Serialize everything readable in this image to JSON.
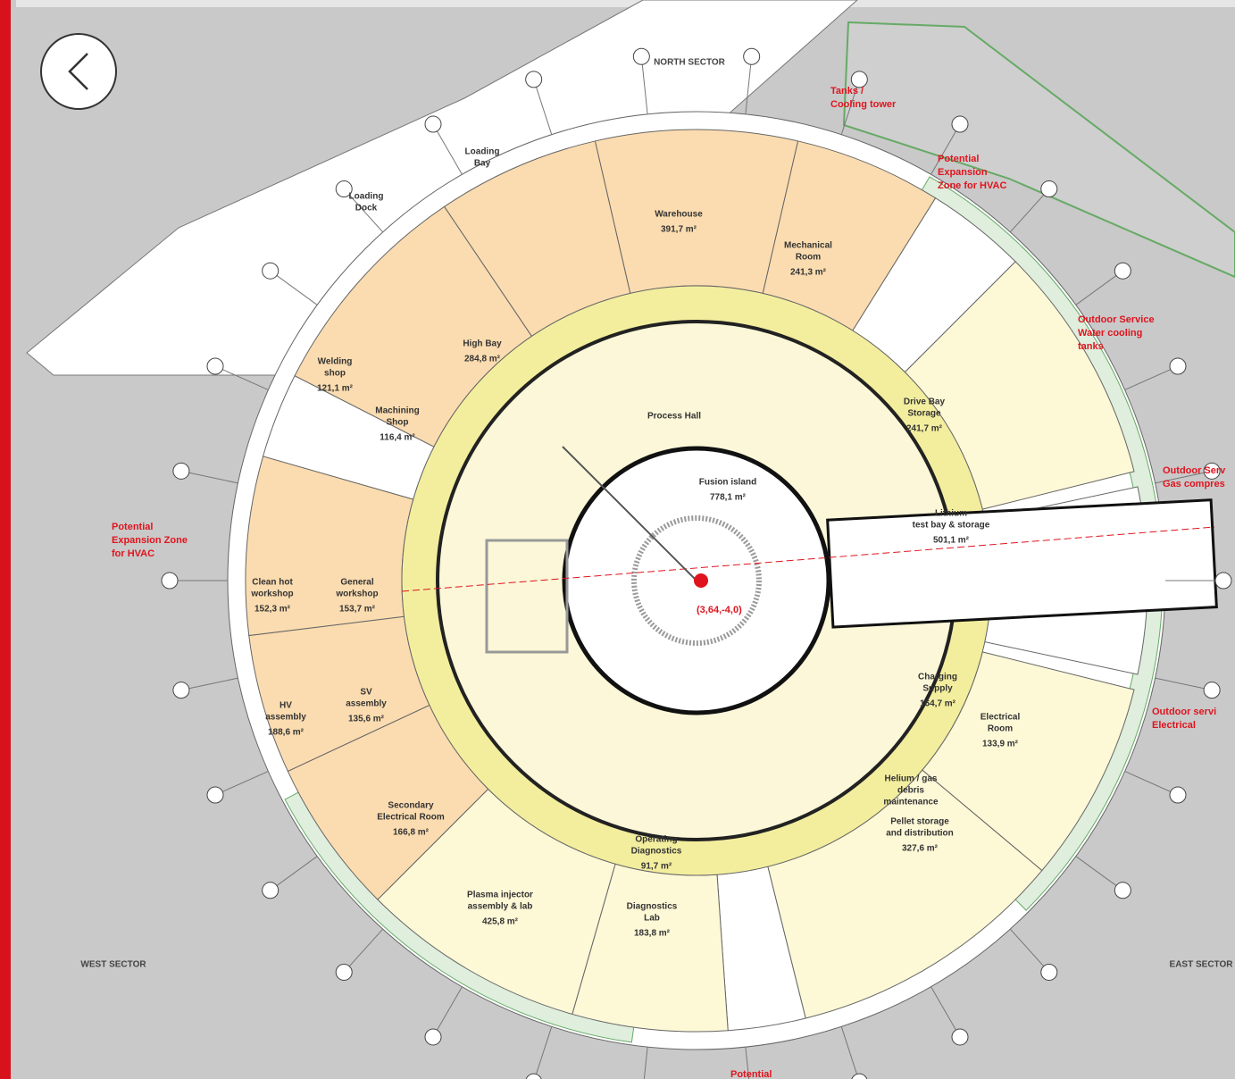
{
  "sectors": {
    "north": "NORTH SECTOR",
    "west": "WEST SECTOR",
    "east": "EAST SECTOR"
  },
  "coordinate": "(3,64,-4,0)",
  "annotations": [
    {
      "lines": [
        "Tanks /",
        "Cooling tower"
      ]
    },
    {
      "lines": [
        "Potential",
        "Expansion",
        "Zone for HVAC"
      ]
    },
    {
      "lines": [
        "Outdoor Service",
        "Water cooling",
        "tanks"
      ]
    },
    {
      "lines": [
        "Outdoor Serv",
        "Gas compres"
      ]
    },
    {
      "lines": [
        "Potential",
        "Expansion Zone",
        "for HVAC"
      ]
    },
    {
      "lines": [
        "Outdoor servi",
        "Electrical"
      ]
    },
    {
      "lines": [
        "Potential"
      ]
    }
  ],
  "rooms": [
    {
      "name": [
        "Warehouse"
      ],
      "area": "391,7 m²"
    },
    {
      "name": [
        "Mechanical",
        "Room"
      ],
      "area": "241,3 m²"
    },
    {
      "name": [
        "High Bay"
      ],
      "area": "284,8 m²"
    },
    {
      "name": [
        "Process Hall"
      ]
    },
    {
      "name": [
        "Fusion island"
      ],
      "area": "778,1 m²"
    },
    {
      "name": [
        "Drive Bay",
        "Storage"
      ],
      "area": "241,7 m²"
    },
    {
      "name": [
        "Lithium",
        "test bay & storage"
      ],
      "area": "501,1 m²"
    },
    {
      "name": [
        "Welding",
        "shop"
      ],
      "area": "121,1 m²"
    },
    {
      "name": [
        "Machining",
        "Shop"
      ],
      "area": "116,4 m²"
    },
    {
      "name": [
        "Clean hot",
        "workshop"
      ],
      "area": "152,3 m²"
    },
    {
      "name": [
        "General",
        "workshop"
      ],
      "area": "153,7 m²"
    },
    {
      "name": [
        "HV",
        "assembly"
      ],
      "area": "188,6 m²"
    },
    {
      "name": [
        "SV",
        "assembly"
      ],
      "area": "135,6 m²"
    },
    {
      "name": [
        "Secondary",
        "Electrical Room"
      ],
      "area": "166,8 m²"
    },
    {
      "name": [
        "Plasma injector",
        "assembly & lab"
      ],
      "area": "425,8 m²"
    },
    {
      "name": [
        "Operating",
        "Diagnostics"
      ],
      "area": "91,7 m²"
    },
    {
      "name": [
        "Diagnostics",
        "Lab"
      ],
      "area": "183,8 m²"
    },
    {
      "name": [
        "Charging",
        "Supply"
      ],
      "area": "164,7 m²"
    },
    {
      "name": [
        "Electrical",
        "Room"
      ],
      "area": "133,9 m²"
    },
    {
      "name": [
        "Helium / gas",
        "debris",
        "maintenance"
      ]
    },
    {
      "name": [
        "Pellet storage",
        "and distribution"
      ],
      "area": "327,6 m²"
    },
    {
      "name": [
        "Loading",
        "Bay"
      ]
    },
    {
      "name": [
        "Loading",
        "Dock"
      ]
    }
  ]
}
